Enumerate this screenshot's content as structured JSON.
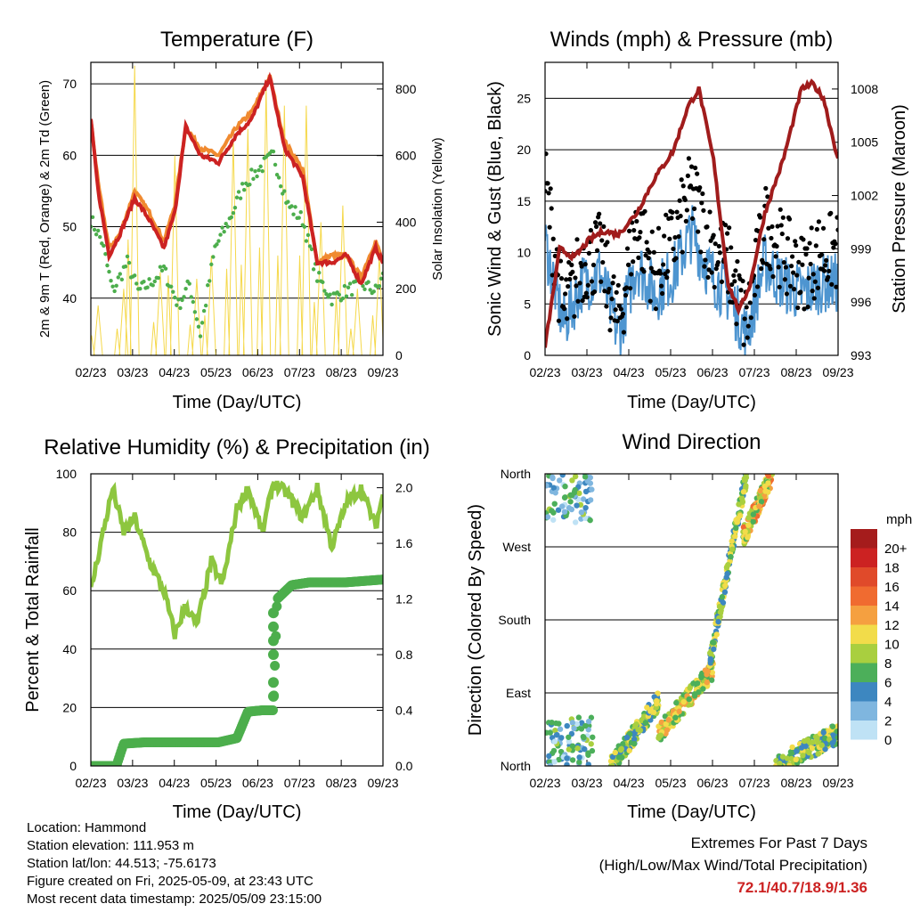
{
  "chart_data": [
    {
      "type": "line",
      "title": "Temperature (F)",
      "xlabel": "Time (Day/UTC)",
      "ylabel": "2m & 9m T (Red, Orange) & 2m Td (Green)",
      "ylabel_right": "Solar Insolation (Yellow)",
      "x_ticks": [
        "02/23",
        "03/23",
        "04/23",
        "05/23",
        "06/23",
        "07/23",
        "08/23",
        "09/23"
      ],
      "ylim": [
        32,
        73
      ],
      "yticks": [
        40,
        50,
        60,
        70
      ],
      "y2lim": [
        0,
        880
      ],
      "y2ticks": [
        0,
        200,
        400,
        600,
        800
      ],
      "grid": "horizontal",
      "colors": {
        "t2m": "#cc2222",
        "t9m": "#f08a30",
        "td2m": "#4cae4c",
        "solar": "#f5d84a"
      },
      "series": [
        {
          "key": "t9m",
          "x": [
            0,
            0.2,
            0.5,
            0.8,
            1.2,
            1.6,
            2,
            2.3,
            2.6,
            3,
            3.5,
            4,
            4.4,
            4.9,
            5.3,
            5.8,
            6.2,
            6.6,
            7,
            7.4,
            7.8,
            8
          ],
          "values": [
            65,
            56,
            47,
            49,
            55,
            52,
            48,
            53,
            64,
            61,
            60,
            64,
            66,
            71,
            62,
            58,
            45,
            46,
            46,
            43,
            48,
            45
          ]
        },
        {
          "key": "t2m",
          "x": [
            0,
            0.2,
            0.5,
            0.8,
            1.2,
            1.6,
            2,
            2.3,
            2.6,
            3,
            3.5,
            4,
            4.4,
            4.9,
            5.3,
            5.8,
            6.2,
            6.6,
            7,
            7.4,
            7.8,
            8
          ],
          "values": [
            65,
            55,
            46,
            49,
            54,
            51,
            47,
            52,
            64,
            60,
            59,
            63,
            65,
            71,
            61,
            57,
            45,
            45,
            46,
            42,
            47,
            45
          ]
        },
        {
          "key": "td2m",
          "x": [
            0,
            0.3,
            0.6,
            1,
            1.3,
            1.6,
            2,
            2.4,
            2.7,
            3,
            3.4,
            3.8,
            4.2,
            4.6,
            5,
            5.4,
            5.8,
            6.2,
            6.6,
            7,
            7.4,
            7.8,
            8
          ],
          "values": [
            51,
            48,
            41,
            45,
            41,
            42,
            44,
            39,
            42,
            35,
            47,
            51,
            56,
            58,
            60,
            53,
            51,
            43,
            40,
            41,
            42,
            41,
            43
          ]
        },
        {
          "key": "solar",
          "x": [
            0.2,
            0.9,
            1.2,
            1.9,
            2.3,
            2.9,
            3.3,
            3.9,
            4.3,
            4.8,
            5.3,
            5.9,
            6.3,
            6.9,
            7.3,
            7.9
          ],
          "values": [
            150,
            200,
            870,
            250,
            600,
            230,
            300,
            650,
            680,
            810,
            750,
            750,
            400,
            450,
            200,
            300
          ]
        }
      ]
    },
    {
      "type": "scatter",
      "title": "Winds (mph) & Pressure (mb)",
      "xlabel": "Time (Day/UTC)",
      "ylabel": "Sonic Wind & Gust (Blue, Black)",
      "ylabel_right": "Station Pressure (Maroon)",
      "x_ticks": [
        "02/23",
        "03/23",
        "04/23",
        "05/23",
        "06/23",
        "07/23",
        "08/23",
        "09/23"
      ],
      "ylim": [
        0,
        28.5
      ],
      "yticks": [
        0,
        5,
        10,
        15,
        20,
        25
      ],
      "y2lim": [
        993,
        1009.5
      ],
      "y2ticks": [
        993,
        996,
        999,
        1002,
        1005,
        1008
      ],
      "grid": "horizontal",
      "colors": {
        "wind": "#4e95d0",
        "gust": "#000000",
        "pressure": "#a01c1c"
      },
      "series": [
        {
          "key": "wind",
          "x": [
            0,
            0.5,
            1,
            1.5,
            2,
            2.5,
            3,
            3.5,
            4,
            4.5,
            5,
            5.5,
            6,
            6.5,
            7,
            7.5,
            8
          ],
          "values": [
            11,
            3,
            7,
            8,
            2,
            9,
            6,
            8,
            12,
            8,
            6,
            2,
            9,
            7,
            6,
            7,
            7
          ]
        },
        {
          "key": "gust",
          "x": [
            0,
            0.5,
            1,
            1.5,
            2,
            2.5,
            3,
            3.5,
            4,
            4.5,
            5,
            5.5,
            6,
            6.5,
            7,
            7.5,
            8
          ],
          "values": [
            17,
            4,
            9,
            10,
            3,
            13,
            8,
            11,
            16,
            11,
            9,
            3,
            13,
            10,
            8,
            10,
            10
          ]
        },
        {
          "key": "pressure",
          "x": [
            0,
            0.4,
            0.8,
            1.2,
            1.6,
            2,
            2.5,
            3,
            3.5,
            3.9,
            4.2,
            4.6,
            5,
            5.3,
            5.6,
            6,
            6.5,
            7,
            7.3,
            7.6,
            8
          ],
          "values": [
            993.5,
            999,
            998.5,
            999.5,
            1000,
            999.8,
            1001,
            1003,
            1004.5,
            1007,
            1008,
            1004,
            997,
            995.5,
            997,
            1001,
            1004,
            1008,
            1008.3,
            1007.5,
            1004
          ]
        }
      ]
    },
    {
      "type": "line",
      "title": "Relative Humidity (%) & Precipitation (in)",
      "xlabel": "Time (Day/UTC)",
      "ylabel": "Percent & Total Rainfall",
      "x_ticks": [
        "02/23",
        "03/23",
        "04/23",
        "05/23",
        "06/23",
        "07/23",
        "08/23",
        "09/23"
      ],
      "ylim": [
        0,
        100
      ],
      "yticks": [
        0,
        20,
        40,
        60,
        80,
        100
      ],
      "y2lim": [
        0,
        2.1
      ],
      "y2ticks": [
        0.0,
        0.4,
        0.8,
        1.2,
        1.6,
        2.0
      ],
      "grid": "horizontal",
      "colors": {
        "rh": "#8dc63f",
        "precip": "#4cae4c"
      },
      "series": [
        {
          "key": "rh",
          "x": [
            0,
            0.3,
            0.6,
            0.9,
            1.2,
            1.6,
            2,
            2.3,
            2.6,
            2.9,
            3.3,
            3.6,
            4,
            4.3,
            4.7,
            5,
            5.4,
            5.8,
            6.2,
            6.6,
            7,
            7.4,
            7.8,
            8
          ],
          "values": [
            60,
            78,
            95,
            80,
            85,
            70,
            60,
            45,
            55,
            48,
            70,
            62,
            88,
            95,
            80,
            97,
            93,
            85,
            95,
            75,
            90,
            95,
            82,
            93
          ]
        },
        {
          "key": "precip",
          "x": [
            0,
            0.7,
            0.9,
            1.5,
            2.5,
            3.5,
            4,
            4.3,
            4.7,
            5,
            5.1,
            5.5,
            6,
            7,
            8
          ],
          "values": [
            0,
            0,
            0.16,
            0.17,
            0.17,
            0.17,
            0.2,
            0.39,
            0.4,
            0.4,
            1.2,
            1.3,
            1.32,
            1.32,
            1.34
          ]
        }
      ]
    },
    {
      "type": "scatter",
      "title": "Wind Direction",
      "xlabel": "Time (Day/UTC)",
      "ylabel": "Direction (Colored By Speed)",
      "x_ticks": [
        "02/23",
        "03/23",
        "04/23",
        "05/23",
        "06/23",
        "07/23",
        "08/23",
        "09/23"
      ],
      "y_ticks": [
        "North",
        "East",
        "South",
        "West",
        "North"
      ],
      "legend": {
        "title": "mph",
        "labels": [
          "20+",
          "18",
          "16",
          "14",
          "12",
          "10",
          "8",
          "6",
          "4",
          "2",
          "0"
        ],
        "colors": [
          "#a51c1c",
          "#cc2222",
          "#e04a2a",
          "#f06b30",
          "#f5a040",
          "#f2dc4a",
          "#a9cf3f",
          "#4caf5a",
          "#3d87c0",
          "#7fb6df",
          "#bfe2f5"
        ]
      },
      "clusters": [
        {
          "x": [
            0,
            1.3
          ],
          "dir": [
            0,
            360
          ],
          "speed": 4
        },
        {
          "x": [
            1.8,
            3.1
          ],
          "dir": [
            0,
            80
          ],
          "speed": 7
        },
        {
          "x": [
            3.1,
            4.6
          ],
          "dir": [
            40,
            120
          ],
          "speed": 9
        },
        {
          "x": [
            4.5,
            5.5
          ],
          "dir": [
            130,
            360
          ],
          "speed": 7
        },
        {
          "x": [
            5.4,
            6.2
          ],
          "dir": [
            280,
            360
          ],
          "speed": 10
        },
        {
          "x": [
            6.3,
            8
          ],
          "dir": [
            0,
            40
          ],
          "speed": 7
        }
      ]
    }
  ],
  "footer": {
    "location": "Location: Hammond",
    "elevation": "Station elevation: 111.953 m",
    "latlon": "Station lat/lon: 44.513; -75.6173",
    "created": "Figure created on Fri, 2025-05-09, at 23:43 UTC",
    "recent": "Most recent data timestamp: 2025/05/09 23:15:00"
  },
  "extremes": {
    "title": "Extremes For Past 7 Days",
    "subtitle": "(High/Low/Max Wind/Total Precipitation)",
    "values": "72.1/40.7/18.9/1.36"
  }
}
